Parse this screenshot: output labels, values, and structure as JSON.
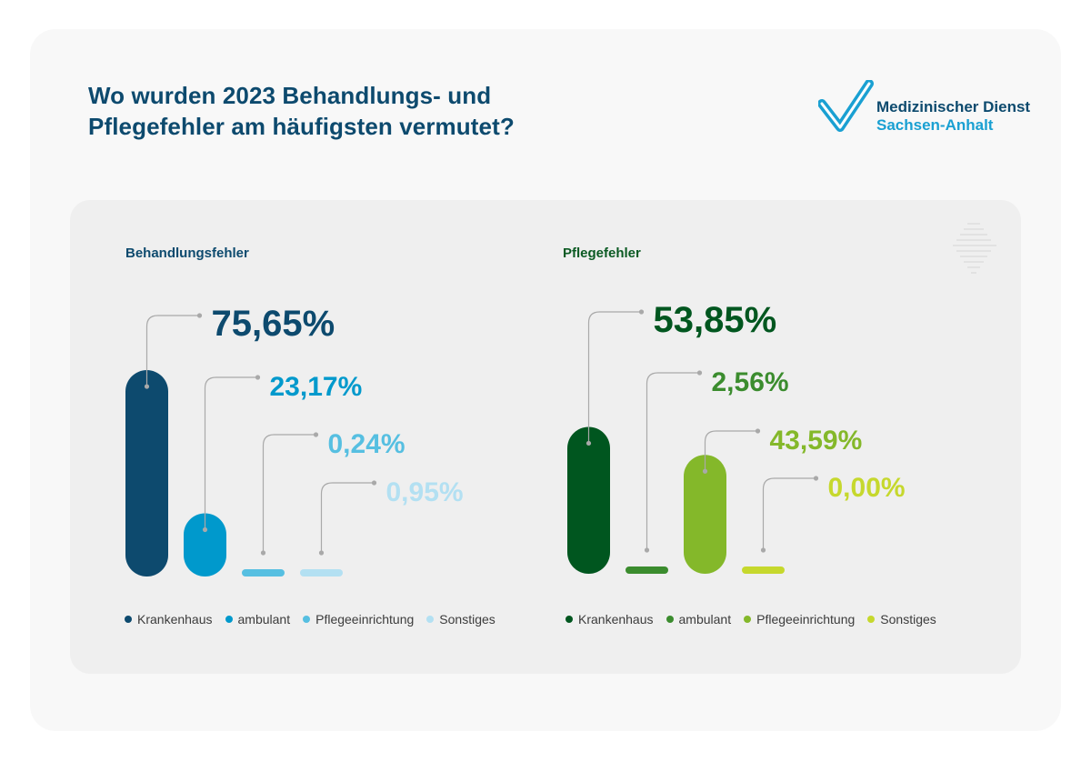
{
  "title_line1": "Wo wurden 2023 Behandlungs- und",
  "title_line2": "Pflegefehler am häufigsten vermutet?",
  "logo": {
    "line1": "Medizinischer Dienst",
    "line2": "Sachsen-Anhalt",
    "mark": "checkmark-logo-icon",
    "colors": [
      "#1aa0d2",
      "#0d4a6e"
    ]
  },
  "chart_data": [
    {
      "type": "bar",
      "title": "Behandlungsfehler",
      "categories": [
        "Krankenhaus",
        "ambulant",
        "Pflegeeinrichtung",
        "Sonstiges"
      ],
      "values": [
        75.65,
        23.17,
        0.24,
        0.95
      ],
      "labels": [
        "75,65%",
        "23,17%",
        "0,24%",
        "0,95%"
      ],
      "colors": [
        "#0d4a6e",
        "#0099cc",
        "#56bfe1",
        "#b3e0f2"
      ],
      "ylim": [
        0,
        100
      ],
      "xlabel": "",
      "ylabel": "",
      "grid": false,
      "legend": "bottom"
    },
    {
      "type": "bar",
      "title": "Pflegefehler",
      "categories": [
        "Krankenhaus",
        "ambulant",
        "Pflegeeinrichtung",
        "Sonstiges"
      ],
      "values": [
        53.85,
        2.56,
        43.59,
        0.0
      ],
      "labels": [
        "53,85%",
        "2,56%",
        "43,59%",
        "0,00%"
      ],
      "colors": [
        "#00561f",
        "#3b8c2e",
        "#84b82a",
        "#c6d82d"
      ],
      "ylim": [
        0,
        100
      ],
      "xlabel": "",
      "ylabel": "",
      "grid": false,
      "legend": "bottom"
    }
  ]
}
